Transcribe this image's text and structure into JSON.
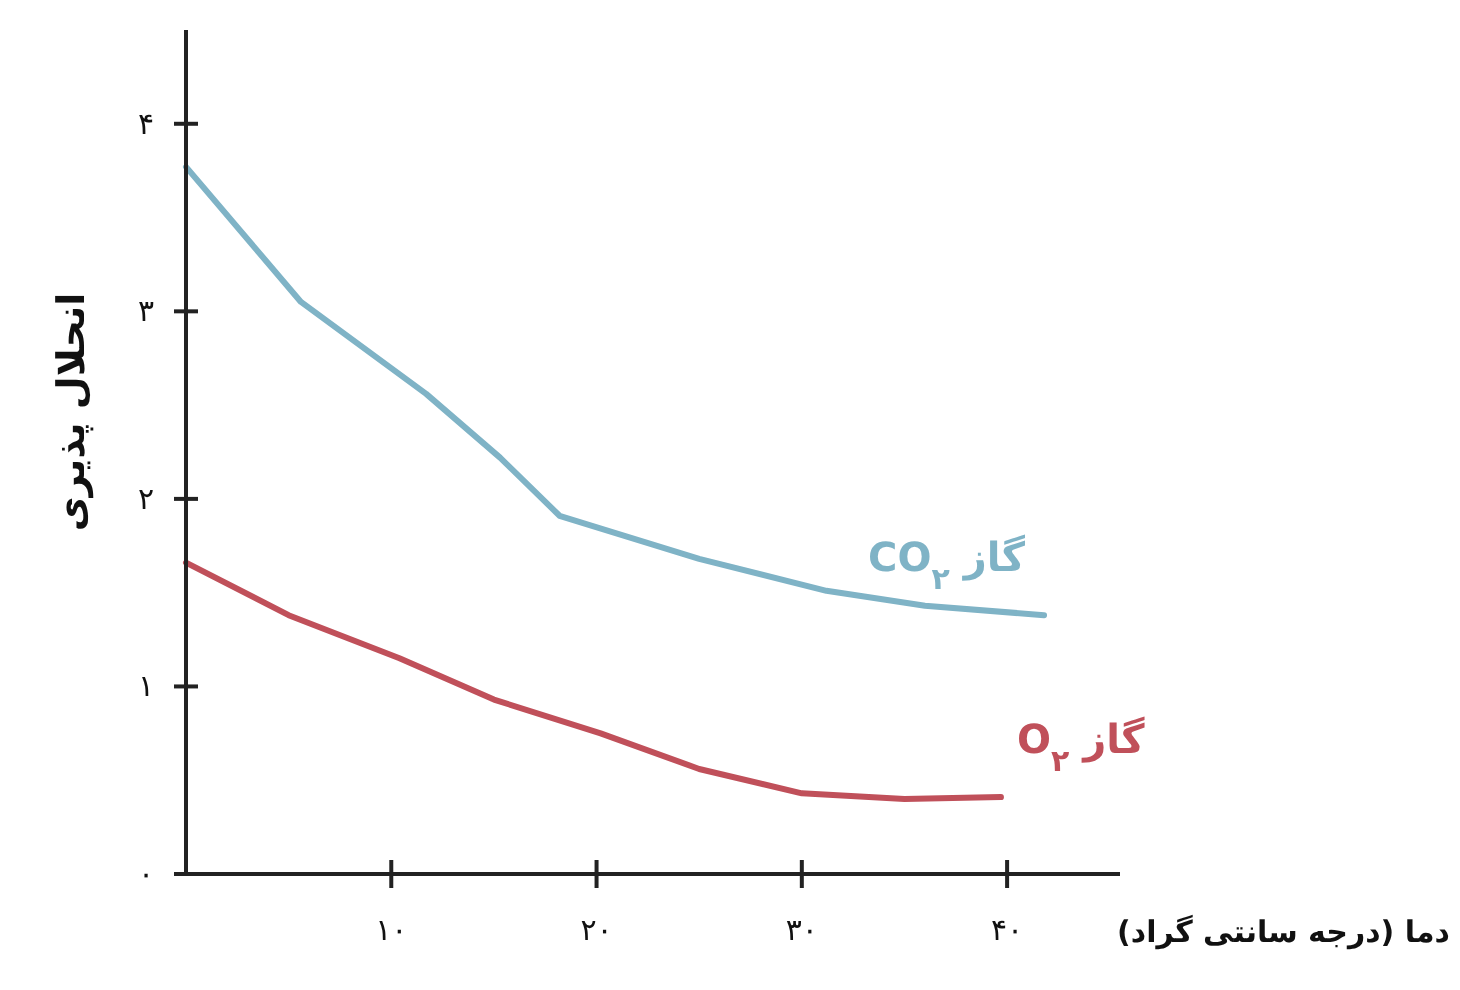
{
  "chart_data": {
    "type": "line",
    "xlabel": "دما (درجه سانتی گراد)",
    "ylabel": "انحلال پذیری",
    "xlim": [
      0,
      45.5
    ],
    "ylim": [
      0,
      4.5
    ],
    "xticks": [
      {
        "value": 10,
        "label": "۱۰"
      },
      {
        "value": 20,
        "label": "۲۰"
      },
      {
        "value": 30,
        "label": "۳۰"
      },
      {
        "value": 40,
        "label": "۴۰"
      }
    ],
    "yticks": [
      {
        "value": 0,
        "label": "۰"
      },
      {
        "value": 1,
        "label": "۱"
      },
      {
        "value": 2,
        "label": "۲"
      },
      {
        "value": 3,
        "label": "۳"
      },
      {
        "value": 4,
        "label": "۴"
      }
    ],
    "series": [
      {
        "name": "گاز CO$_{۲}$",
        "color": "#7fb3c6",
        "x": [
          0,
          5.6,
          11.7,
          15.3,
          18.2,
          25,
          31.2,
          36,
          41.8
        ],
        "values": [
          3.77,
          3.05,
          2.56,
          2.22,
          1.91,
          1.68,
          1.51,
          1.43,
          1.38
        ]
      },
      {
        "name": "گاز O$_{۲}$",
        "color": "#c0505a",
        "x": [
          0,
          5,
          10.4,
          15,
          20.2,
          25,
          30,
          35,
          39.7
        ],
        "values": [
          1.66,
          1.38,
          1.15,
          0.93,
          0.75,
          0.56,
          0.43,
          0.4,
          0.41
        ]
      }
    ]
  }
}
